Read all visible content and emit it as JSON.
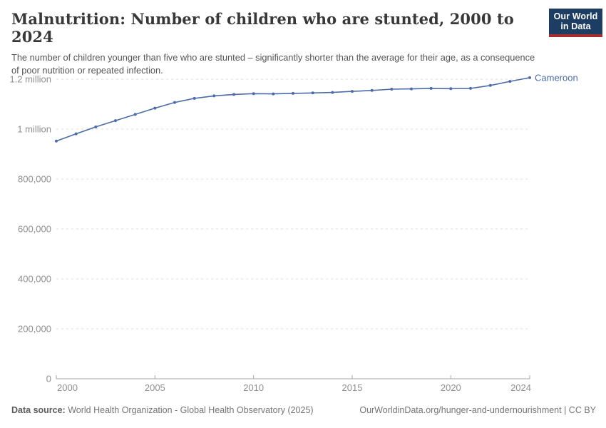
{
  "header": {
    "title": "Malnutrition: Number of children who are stunted, 2000 to 2024",
    "subtitle": "The number of children younger than five who are stunted – significantly shorter than the average for their age, as a consequence of poor nutrition or repeated infection.",
    "logo": {
      "line1": "Our World",
      "line2": "in Data"
    }
  },
  "chart_data": {
    "type": "line",
    "title": "Malnutrition: Number of children who are stunted, 2000 to 2024",
    "entity_label": "Cameroon",
    "x": [
      2000,
      2001,
      2002,
      2003,
      2004,
      2005,
      2006,
      2007,
      2008,
      2009,
      2010,
      2011,
      2012,
      2013,
      2014,
      2015,
      2016,
      2017,
      2018,
      2019,
      2020,
      2021,
      2022,
      2023,
      2024
    ],
    "series": [
      {
        "name": "Cameroon",
        "values": [
          952000,
          981000,
          1009000,
          1034000,
          1059000,
          1084000,
          1107000,
          1123000,
          1133000,
          1139000,
          1142000,
          1141000,
          1143000,
          1145000,
          1147000,
          1151000,
          1155000,
          1160000,
          1161000,
          1163000,
          1162000,
          1163000,
          1175000,
          1191000,
          1206000
        ]
      }
    ],
    "xlabel": "",
    "ylabel": "",
    "xlim": [
      2000,
      2024
    ],
    "ylim": [
      0,
      1200000
    ],
    "grid": true,
    "legend_position": "end-of-line",
    "y_ticks": [
      {
        "value": 0,
        "label": "0"
      },
      {
        "value": 200000,
        "label": "200,000"
      },
      {
        "value": 400000,
        "label": "400,000"
      },
      {
        "value": 600000,
        "label": "600,000"
      },
      {
        "value": 800000,
        "label": "800,000"
      },
      {
        "value": 1000000,
        "label": "1 million"
      },
      {
        "value": 1200000,
        "label": "1.2 million"
      }
    ],
    "x_ticks": [
      {
        "value": 2000,
        "label": "2000"
      },
      {
        "value": 2005,
        "label": "2005"
      },
      {
        "value": 2010,
        "label": "2010"
      },
      {
        "value": 2015,
        "label": "2015"
      },
      {
        "value": 2020,
        "label": "2020"
      },
      {
        "value": 2024,
        "label": "2024"
      }
    ]
  },
  "colors": {
    "line": "#4c6ca9",
    "entity_label": "#4c6ca9",
    "grid": "#dddddd",
    "axis": "#a6a6a6",
    "tick_label": "#8f8f8f",
    "logo_navy": "#1d3d63",
    "logo_red": "#a82d2d"
  },
  "footer": {
    "datasource_label": "Data source:",
    "datasource_text": " World Health Organization - Global Health Observatory (2025)",
    "link_text": "OurWorldinData.org/hunger-and-undernourishment | CC BY"
  }
}
